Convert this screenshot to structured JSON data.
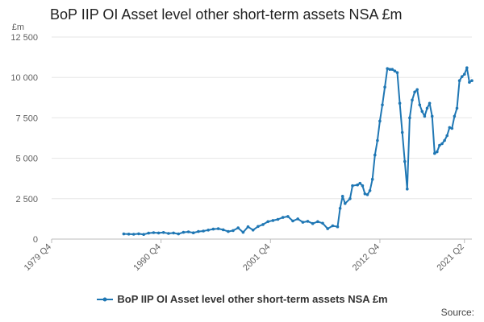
{
  "chart_data": {
    "type": "line",
    "title": "BoP IIP OI Asset level other short-term assets NSA £m",
    "unit_label": "£m",
    "ylim": [
      0,
      12500
    ],
    "y_ticks": [
      0,
      2500,
      5000,
      7500,
      10000,
      12500
    ],
    "y_tick_labels": [
      "0",
      "2 500",
      "5 000",
      "7 500",
      "10 000",
      "12 500"
    ],
    "x_tick_labels": [
      "1979 Q4",
      "1990 Q4",
      "2001 Q4",
      "2012 Q4",
      "2021 Q2"
    ],
    "legend_position": "bottom",
    "grid": true,
    "source_label": "Source:",
    "series": [
      {
        "name": "BoP IIP OI Asset level other short-term assets NSA £m",
        "color": "#1f77b4",
        "points": [
          [
            "1987 Q1",
            320
          ],
          [
            "1987 Q3",
            310
          ],
          [
            "1988 Q1",
            300
          ],
          [
            "1988 Q3",
            330
          ],
          [
            "1989 Q1",
            290
          ],
          [
            "1989 Q3",
            370
          ],
          [
            "1990 Q1",
            400
          ],
          [
            "1990 Q3",
            380
          ],
          [
            "1991 Q1",
            410
          ],
          [
            "1991 Q3",
            350
          ],
          [
            "1992 Q1",
            380
          ],
          [
            "1992 Q3",
            320
          ],
          [
            "1993 Q1",
            420
          ],
          [
            "1993 Q3",
            450
          ],
          [
            "1994 Q1",
            390
          ],
          [
            "1994 Q3",
            470
          ],
          [
            "1995 Q1",
            500
          ],
          [
            "1995 Q3",
            560
          ],
          [
            "1996 Q1",
            620
          ],
          [
            "1996 Q3",
            640
          ],
          [
            "1997 Q1",
            580
          ],
          [
            "1997 Q3",
            470
          ],
          [
            "1998 Q1",
            530
          ],
          [
            "1998 Q3",
            690
          ],
          [
            "1999 Q1",
            420
          ],
          [
            "1999 Q3",
            760
          ],
          [
            "2000 Q1",
            560
          ],
          [
            "2000 Q3",
            780
          ],
          [
            "2001 Q1",
            900
          ],
          [
            "2001 Q3",
            1080
          ],
          [
            "2002 Q1",
            1150
          ],
          [
            "2002 Q3",
            1220
          ],
          [
            "2003 Q1",
            1340
          ],
          [
            "2003 Q3",
            1400
          ],
          [
            "2004 Q1",
            1120
          ],
          [
            "2004 Q3",
            1250
          ],
          [
            "2005 Q1",
            1040
          ],
          [
            "2005 Q3",
            1100
          ],
          [
            "2006 Q1",
            960
          ],
          [
            "2006 Q3",
            1080
          ],
          [
            "2007 Q1",
            980
          ],
          [
            "2007 Q3",
            640
          ],
          [
            "2008 Q1",
            820
          ],
          [
            "2008 Q3",
            760
          ],
          [
            "2008 Q4",
            1900
          ],
          [
            "2009 Q1",
            2650
          ],
          [
            "2009 Q2",
            2200
          ],
          [
            "2009 Q4",
            2500
          ],
          [
            "2010 Q1",
            3300
          ],
          [
            "2010 Q3",
            3350
          ],
          [
            "2010 Q4",
            3450
          ],
          [
            "2011 Q1",
            3300
          ],
          [
            "2011 Q2",
            2800
          ],
          [
            "2011 Q3",
            2750
          ],
          [
            "2011 Q4",
            3000
          ],
          [
            "2012 Q1",
            3700
          ],
          [
            "2012 Q2",
            5200
          ],
          [
            "2012 Q3",
            6100
          ],
          [
            "2012 Q4",
            7300
          ],
          [
            "2013 Q1",
            8300
          ],
          [
            "2013 Q2",
            9400
          ],
          [
            "2013 Q3",
            10550
          ],
          [
            "2013 Q4",
            10500
          ],
          [
            "2014 Q1",
            10500
          ],
          [
            "2014 Q2",
            10400
          ],
          [
            "2014 Q3",
            10300
          ],
          [
            "2014 Q4",
            8400
          ],
          [
            "2015 Q1",
            6600
          ],
          [
            "2015 Q2",
            4800
          ],
          [
            "2015 Q3",
            3100
          ],
          [
            "2015 Q4",
            7500
          ],
          [
            "2016 Q1",
            8600
          ],
          [
            "2016 Q2",
            9100
          ],
          [
            "2016 Q3",
            9250
          ],
          [
            "2016 Q4",
            8300
          ],
          [
            "2017 Q1",
            7900
          ],
          [
            "2017 Q2",
            7600
          ],
          [
            "2017 Q3",
            8100
          ],
          [
            "2017 Q4",
            8400
          ],
          [
            "2018 Q1",
            7600
          ],
          [
            "2018 Q2",
            5300
          ],
          [
            "2018 Q3",
            5400
          ],
          [
            "2018 Q4",
            5800
          ],
          [
            "2019 Q1",
            5900
          ],
          [
            "2019 Q2",
            6100
          ],
          [
            "2019 Q3",
            6400
          ],
          [
            "2019 Q4",
            6900
          ],
          [
            "2020 Q1",
            6850
          ],
          [
            "2020 Q2",
            7600
          ],
          [
            "2020 Q3",
            8100
          ],
          [
            "2020 Q4",
            9800
          ],
          [
            "2021 Q1",
            10050
          ],
          [
            "2021 Q2",
            10200
          ],
          [
            "2021 Q3",
            10600
          ],
          [
            "2021 Q4",
            9700
          ],
          [
            "2022 Q1",
            9800
          ]
        ]
      }
    ]
  }
}
